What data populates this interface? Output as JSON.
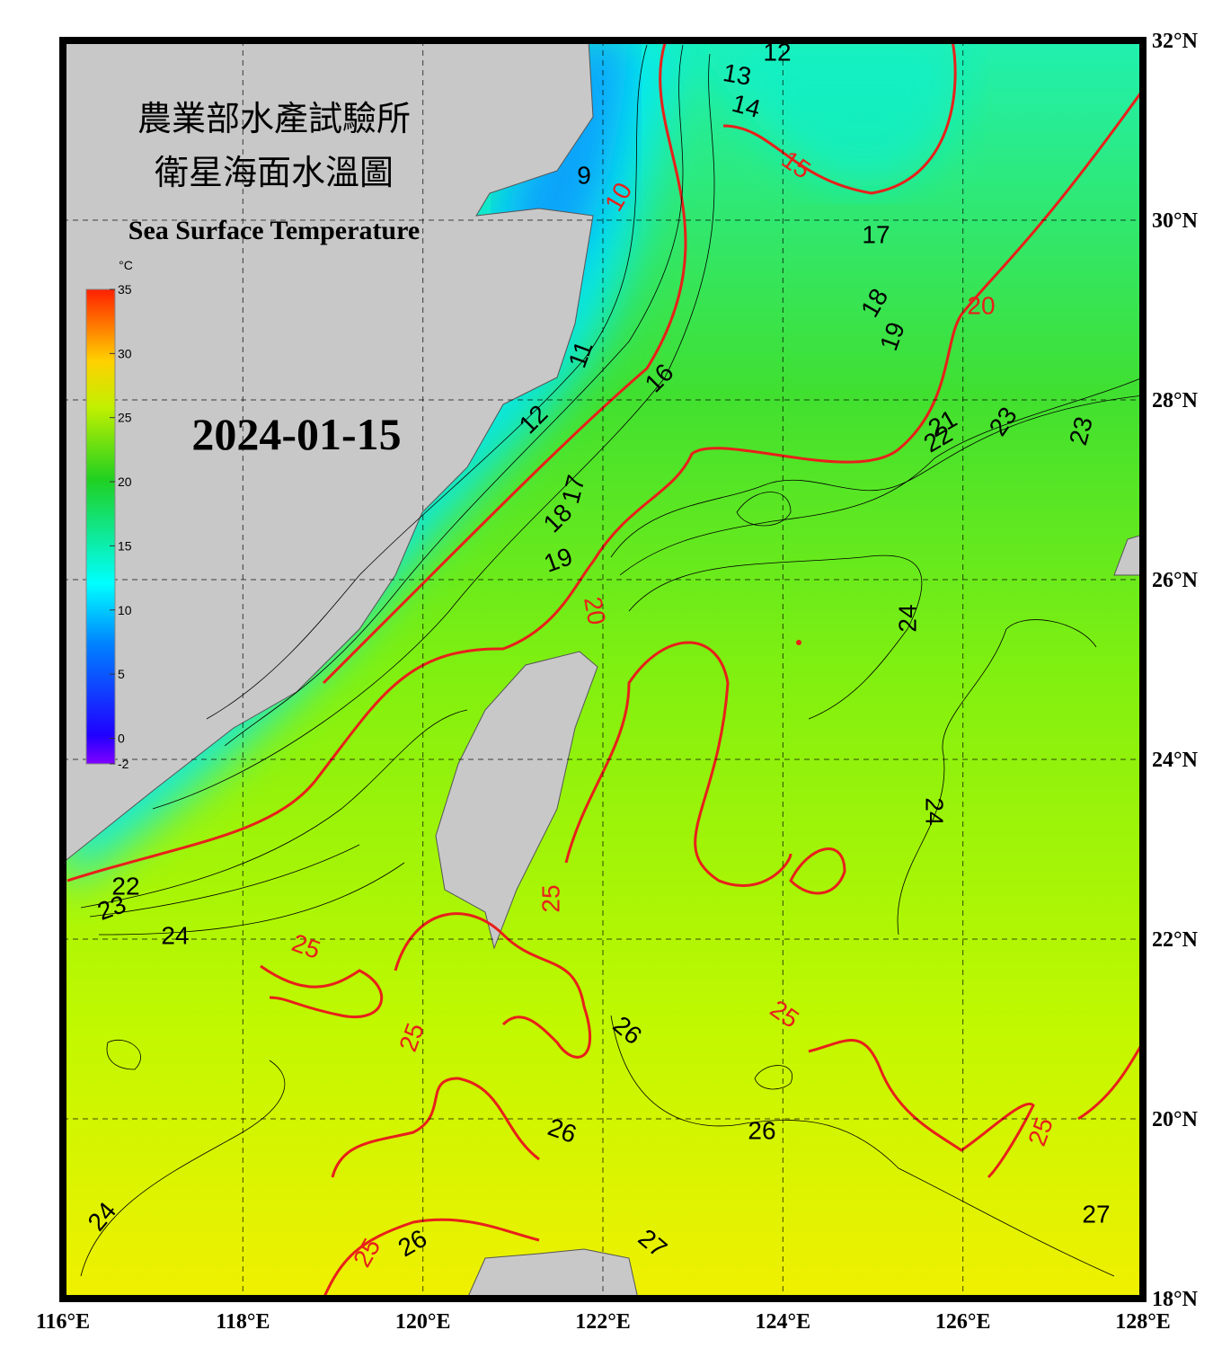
{
  "header": {
    "title_zh_1": "農業部水產試驗所",
    "title_zh_2": "衛星海面水溫圖",
    "title_en": "Sea Surface Temperature",
    "date": "2024-01-15"
  },
  "colorbar": {
    "unit": "°C",
    "lim": [
      -2,
      35
    ],
    "ticks": [
      35,
      30,
      25,
      20,
      15,
      10,
      5,
      0,
      -2
    ]
  },
  "map": {
    "lonlim": [
      116,
      128
    ],
    "latlim": [
      18,
      32
    ],
    "lonticks": [
      {
        "value": 116,
        "label": "116°E"
      },
      {
        "value": 118,
        "label": "118°E"
      },
      {
        "value": 120,
        "label": "120°E"
      },
      {
        "value": 122,
        "label": "122°E"
      },
      {
        "value": 124,
        "label": "124°E"
      },
      {
        "value": 126,
        "label": "126°E"
      },
      {
        "value": 128,
        "label": "128°E"
      }
    ],
    "latticks": [
      {
        "value": 32,
        "label": "32°N"
      },
      {
        "value": 30,
        "label": "30°N"
      },
      {
        "value": 28,
        "label": "28°N"
      },
      {
        "value": 26,
        "label": "26°N"
      },
      {
        "value": 24,
        "label": "24°N"
      },
      {
        "value": 22,
        "label": "22°N"
      },
      {
        "value": 20,
        "label": "20°N"
      },
      {
        "value": 18,
        "label": "18°N"
      }
    ],
    "grid": true,
    "contour_labels": [
      {
        "label": "12",
        "color": "#000"
      },
      {
        "label": "13",
        "color": "#000"
      },
      {
        "label": "14",
        "color": "#000"
      },
      {
        "label": "15",
        "color": "#e8201a"
      },
      {
        "label": "9",
        "color": "#000"
      },
      {
        "label": "10",
        "color": "#e8201a"
      },
      {
        "label": "17",
        "color": "#000"
      },
      {
        "label": "18",
        "color": "#000"
      },
      {
        "label": "19",
        "color": "#000"
      },
      {
        "label": "20",
        "color": "#e8201a"
      },
      {
        "label": "11",
        "color": "#000"
      },
      {
        "label": "16",
        "color": "#000"
      },
      {
        "label": "12",
        "color": "#000"
      },
      {
        "label": "21",
        "color": "#000"
      },
      {
        "label": "22",
        "color": "#000"
      },
      {
        "label": "23",
        "color": "#000"
      },
      {
        "label": "23",
        "color": "#000"
      },
      {
        "label": "17",
        "color": "#000"
      },
      {
        "label": "18",
        "color": "#000"
      },
      {
        "label": "19",
        "color": "#000"
      },
      {
        "label": "20",
        "color": "#e8201a"
      },
      {
        "label": "24",
        "color": "#000"
      },
      {
        "label": "24",
        "color": "#000"
      },
      {
        "label": "24",
        "color": "#000"
      },
      {
        "label": "25",
        "color": "#e8201a"
      },
      {
        "label": "25",
        "color": "#e8201a"
      },
      {
        "label": "25",
        "color": "#e8201a"
      },
      {
        "label": "25",
        "color": "#e8201a"
      },
      {
        "label": "26",
        "color": "#000"
      },
      {
        "label": "26",
        "color": "#000"
      },
      {
        "label": "26",
        "color": "#000"
      },
      {
        "label": "25",
        "color": "#e8201a"
      },
      {
        "label": "27",
        "color": "#000"
      },
      {
        "label": "24",
        "color": "#000"
      },
      {
        "label": "26",
        "color": "#000"
      },
      {
        "label": "25",
        "color": "#e8201a"
      },
      {
        "label": "27",
        "color": "#000"
      },
      {
        "label": "23",
        "color": "#000"
      },
      {
        "label": "22",
        "color": "#000"
      }
    ]
  }
}
